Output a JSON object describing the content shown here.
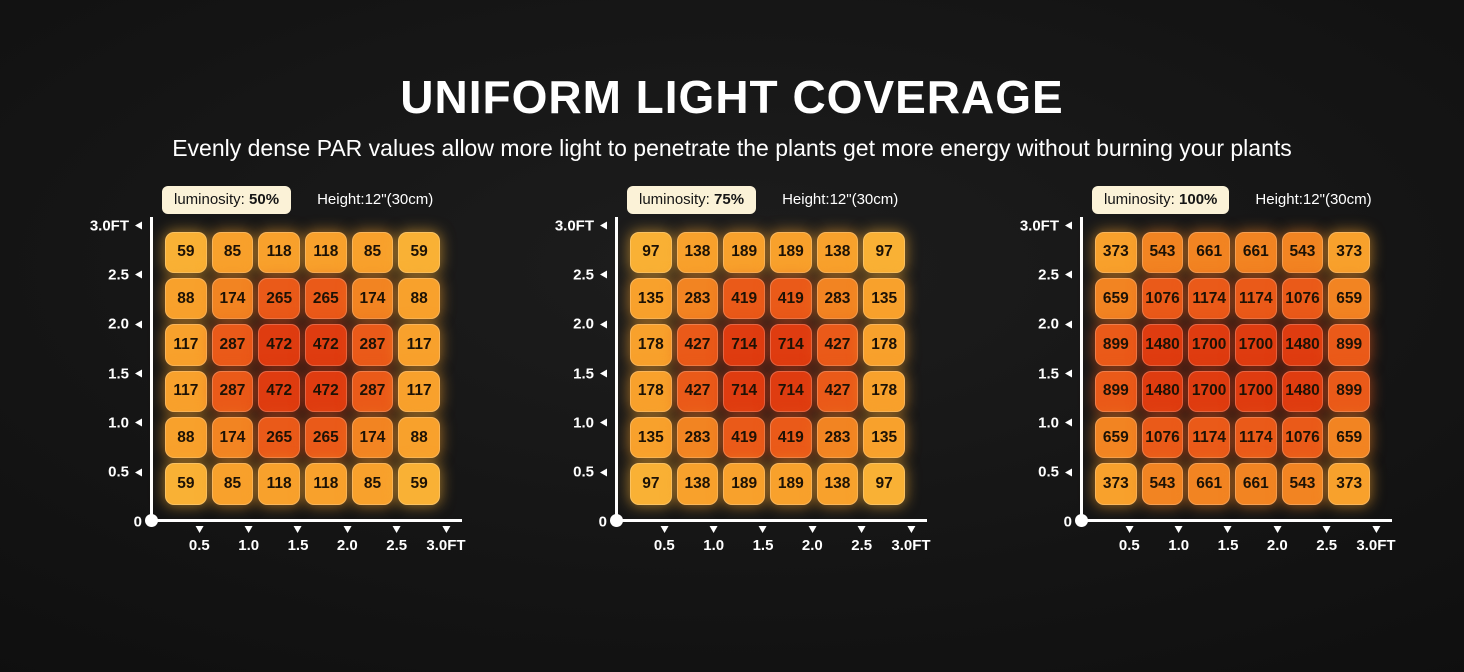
{
  "page": {
    "title": "UNIFORM LIGHT COVERAGE",
    "subtitle": "Evenly dense PAR values allow more light to penetrate the plants get more energy without burning your plants"
  },
  "palette": {
    "colors": [
      "#F9B135",
      "#F8A12C",
      "#F28422",
      "#EA5A19",
      "#DF3C10"
    ],
    "thresholds": [
      0.15,
      0.28,
      0.45,
      0.7
    ],
    "axis_color": "#FFFFFF",
    "badge_background": "#FBF2D7",
    "cell_text_color": "#1D1205"
  },
  "axes": {
    "y_ticks": [
      "3.0FT",
      "2.5",
      "2.0",
      "1.5",
      "1.0",
      "0.5",
      "0"
    ],
    "x_ticks": [
      "0.5",
      "1.0",
      "1.5",
      "2.0",
      "2.5",
      "3.0FT"
    ]
  },
  "chart_data": [
    {
      "type": "heatmap",
      "luminosity_label": "luminosity:",
      "luminosity_value": "50%",
      "height_label": "Height:12\"(30cm)",
      "x_ticks": [
        "0.5",
        "1.0",
        "1.5",
        "2.0",
        "2.5",
        "3.0FT"
      ],
      "y_ticks": [
        "3.0FT",
        "2.5",
        "2.0",
        "1.5",
        "1.0",
        "0.5",
        "0"
      ],
      "max": 472,
      "rows": [
        [
          59,
          85,
          118,
          118,
          85,
          59
        ],
        [
          88,
          174,
          265,
          265,
          174,
          88
        ],
        [
          117,
          287,
          472,
          472,
          287,
          117
        ],
        [
          117,
          287,
          472,
          472,
          287,
          117
        ],
        [
          88,
          174,
          265,
          265,
          174,
          88
        ],
        [
          59,
          85,
          118,
          118,
          85,
          59
        ]
      ]
    },
    {
      "type": "heatmap",
      "luminosity_label": "luminosity:",
      "luminosity_value": "75%",
      "height_label": "Height:12\"(30cm)",
      "x_ticks": [
        "0.5",
        "1.0",
        "1.5",
        "2.0",
        "2.5",
        "3.0FT"
      ],
      "y_ticks": [
        "3.0FT",
        "2.5",
        "2.0",
        "1.5",
        "1.0",
        "0.5",
        "0"
      ],
      "max": 714,
      "rows": [
        [
          97,
          138,
          189,
          189,
          138,
          97
        ],
        [
          135,
          283,
          419,
          419,
          283,
          135
        ],
        [
          178,
          427,
          714,
          714,
          427,
          178
        ],
        [
          178,
          427,
          714,
          714,
          427,
          178
        ],
        [
          135,
          283,
          419,
          419,
          283,
          135
        ],
        [
          97,
          138,
          189,
          189,
          138,
          97
        ]
      ]
    },
    {
      "type": "heatmap",
      "luminosity_label": "luminosity:",
      "luminosity_value": "100%",
      "height_label": "Height:12\"(30cm)",
      "x_ticks": [
        "0.5",
        "1.0",
        "1.5",
        "2.0",
        "2.5",
        "3.0FT"
      ],
      "y_ticks": [
        "3.0FT",
        "2.5",
        "2.0",
        "1.5",
        "1.0",
        "0.5",
        "0"
      ],
      "max": 1700,
      "rows": [
        [
          373,
          543,
          661,
          661,
          543,
          373
        ],
        [
          659,
          1076,
          1174,
          1174,
          1076,
          659
        ],
        [
          899,
          1480,
          1700,
          1700,
          1480,
          899
        ],
        [
          899,
          1480,
          1700,
          1700,
          1480,
          899
        ],
        [
          659,
          1076,
          1174,
          1174,
          1076,
          659
        ],
        [
          373,
          543,
          661,
          661,
          543,
          373
        ]
      ]
    }
  ]
}
